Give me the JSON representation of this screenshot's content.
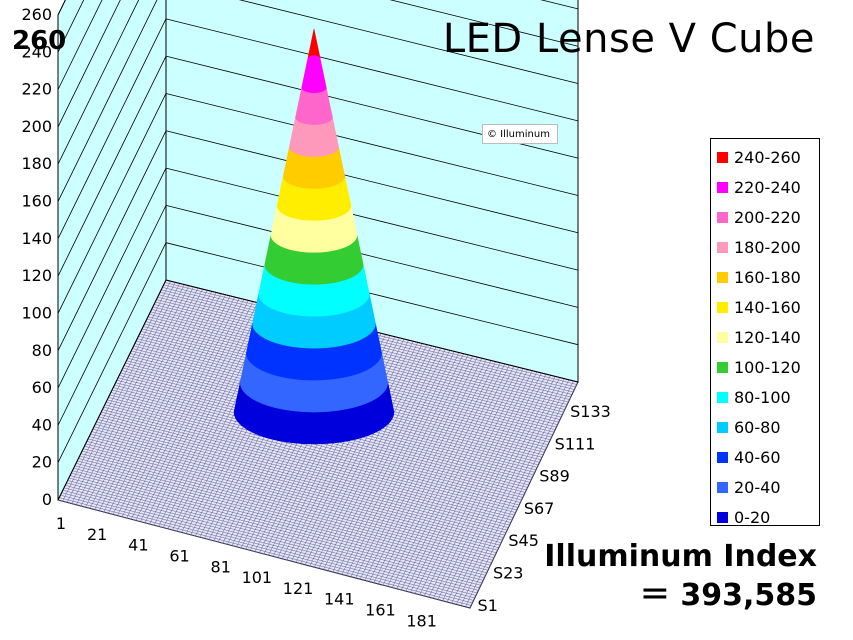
{
  "header": {
    "max_value": "260",
    "title": "LED Lense V Cube",
    "watermark": "© Illuminum"
  },
  "index": {
    "label": "Illuminum Index",
    "value": "＝ 393,585"
  },
  "colors": {
    "wall": "#ccffff",
    "wall_line": "#000000",
    "floor_mesh": "#5a5aa0"
  },
  "chart_data": {
    "type": "surface3d",
    "title": "LED Lense V Cube",
    "zlim": [
      0,
      260
    ],
    "z_ticks": [
      "0",
      "20",
      "40",
      "60",
      "80",
      "100",
      "120",
      "140",
      "160",
      "180",
      "200",
      "220",
      "240",
      "260"
    ],
    "x_ticks": [
      "1",
      "21",
      "41",
      "61",
      "81",
      "101",
      "121",
      "141",
      "161",
      "181"
    ],
    "y_ticks": [
      "S1",
      "S23",
      "S45",
      "S67",
      "S89",
      "S111",
      "S133"
    ],
    "peak_value": 260,
    "legend": [
      {
        "label": "240-260",
        "color": "#ff0000"
      },
      {
        "label": "220-240",
        "color": "#ff00ff"
      },
      {
        "label": "200-220",
        "color": "#ff66cc"
      },
      {
        "label": "180-200",
        "color": "#ff99bb"
      },
      {
        "label": "160-180",
        "color": "#ffcc00"
      },
      {
        "label": "140-160",
        "color": "#ffee00"
      },
      {
        "label": "120-140",
        "color": "#ffffa0"
      },
      {
        "label": "100-120",
        "color": "#33cc33"
      },
      {
        "label": "80-100",
        "color": "#00ffff"
      },
      {
        "label": "60-80",
        "color": "#00ccff"
      },
      {
        "label": "40-60",
        "color": "#0033ff"
      },
      {
        "label": "20-40",
        "color": "#3366ff"
      },
      {
        "label": "0-20",
        "color": "#0000dd"
      }
    ]
  }
}
